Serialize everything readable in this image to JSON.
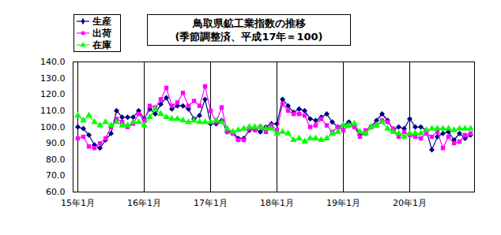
{
  "chart_data": {
    "type": "line",
    "title": "鳥取県鉱工業指数の推移",
    "subtitle": "(季節調整済、平成17年＝100)",
    "categories": [
      "15年1月",
      null,
      null,
      null,
      null,
      null,
      null,
      null,
      null,
      null,
      null,
      null,
      "16年1月",
      null,
      null,
      null,
      null,
      null,
      null,
      null,
      null,
      null,
      null,
      null,
      "17年1月",
      null,
      null,
      null,
      null,
      null,
      null,
      null,
      null,
      null,
      null,
      null,
      "18年1月",
      null,
      null,
      null,
      null,
      null,
      null,
      null,
      null,
      null,
      null,
      null,
      "19年1月",
      null,
      null,
      null,
      null,
      null,
      null,
      null,
      null,
      null,
      null,
      null,
      "20年1月",
      null,
      null,
      null,
      null,
      null,
      null,
      null,
      null,
      null,
      null,
      null
    ],
    "series": [
      {
        "name": "生産",
        "color": "#000080",
        "marker": "diamond",
        "values": [
          100,
          99,
          95,
          89,
          87,
          92,
          96,
          110,
          106,
          106,
          106,
          110,
          105,
          111,
          108,
          114,
          118,
          111,
          113,
          113,
          111,
          105,
          107,
          117,
          102,
          102,
          104,
          97,
          97,
          93,
          93,
          98,
          99,
          97,
          100,
          102,
          102,
          117,
          113,
          109,
          111,
          110,
          105,
          104,
          106,
          108,
          103,
          100,
          101,
          103,
          101,
          95,
          96,
          100,
          104,
          108,
          104,
          98,
          100,
          99,
          105,
          100,
          100,
          98,
          86,
          94,
          96,
          97,
          92,
          96,
          93,
          95
        ]
      },
      {
        "name": "出荷",
        "color": "#ff00ff",
        "marker": "square",
        "values": [
          93,
          94,
          88,
          87,
          90,
          93,
          100,
          105,
          103,
          100,
          102,
          108,
          104,
          113,
          112,
          117,
          124,
          113,
          115,
          121,
          113,
          116,
          113,
          125,
          110,
          103,
          112,
          97,
          96,
          92,
          92,
          99,
          98,
          100,
          97,
          101,
          98,
          114,
          110,
          108,
          108,
          107,
          100,
          101,
          105,
          101,
          97,
          100,
          98,
          101,
          100,
          94,
          98,
          100,
          101,
          104,
          103,
          99,
          94,
          97,
          95,
          94,
          93,
          96,
          94,
          97,
          87,
          94,
          90,
          91,
          95,
          96
        ]
      },
      {
        "name": "在庫",
        "color": "#00ff00",
        "marker": "triangle",
        "values": [
          107,
          104,
          107,
          103,
          101,
          103,
          101,
          103,
          101,
          101,
          103,
          103,
          101,
          106,
          111,
          108,
          106,
          105,
          105,
          104,
          103,
          104,
          103,
          103,
          103,
          104,
          103,
          99,
          97,
          98,
          99,
          100,
          100,
          100,
          99,
          99,
          96,
          97,
          96,
          92,
          93,
          91,
          93,
          93,
          92,
          93,
          96,
          97,
          101,
          101,
          102,
          97,
          96,
          100,
          101,
          103,
          99,
          97,
          96,
          94,
          96,
          96,
          96,
          98,
          99,
          99,
          99,
          99,
          98,
          99,
          99,
          99
        ]
      }
    ],
    "ylim": [
      60,
      140
    ],
    "yticks": [
      {
        "value": 60,
        "label": "60.0"
      },
      {
        "value": 70,
        "label": "70.0"
      },
      {
        "value": 80,
        "label": "80.0"
      },
      {
        "value": 90,
        "label": "90.0"
      },
      {
        "value": 100,
        "label": "100.0"
      },
      {
        "value": 110,
        "label": "110.0"
      },
      {
        "value": 120,
        "label": "120.0"
      },
      {
        "value": 130,
        "label": "130.0"
      },
      {
        "value": 140,
        "label": "140.0"
      }
    ],
    "grid": true,
    "legend": "top-left"
  }
}
